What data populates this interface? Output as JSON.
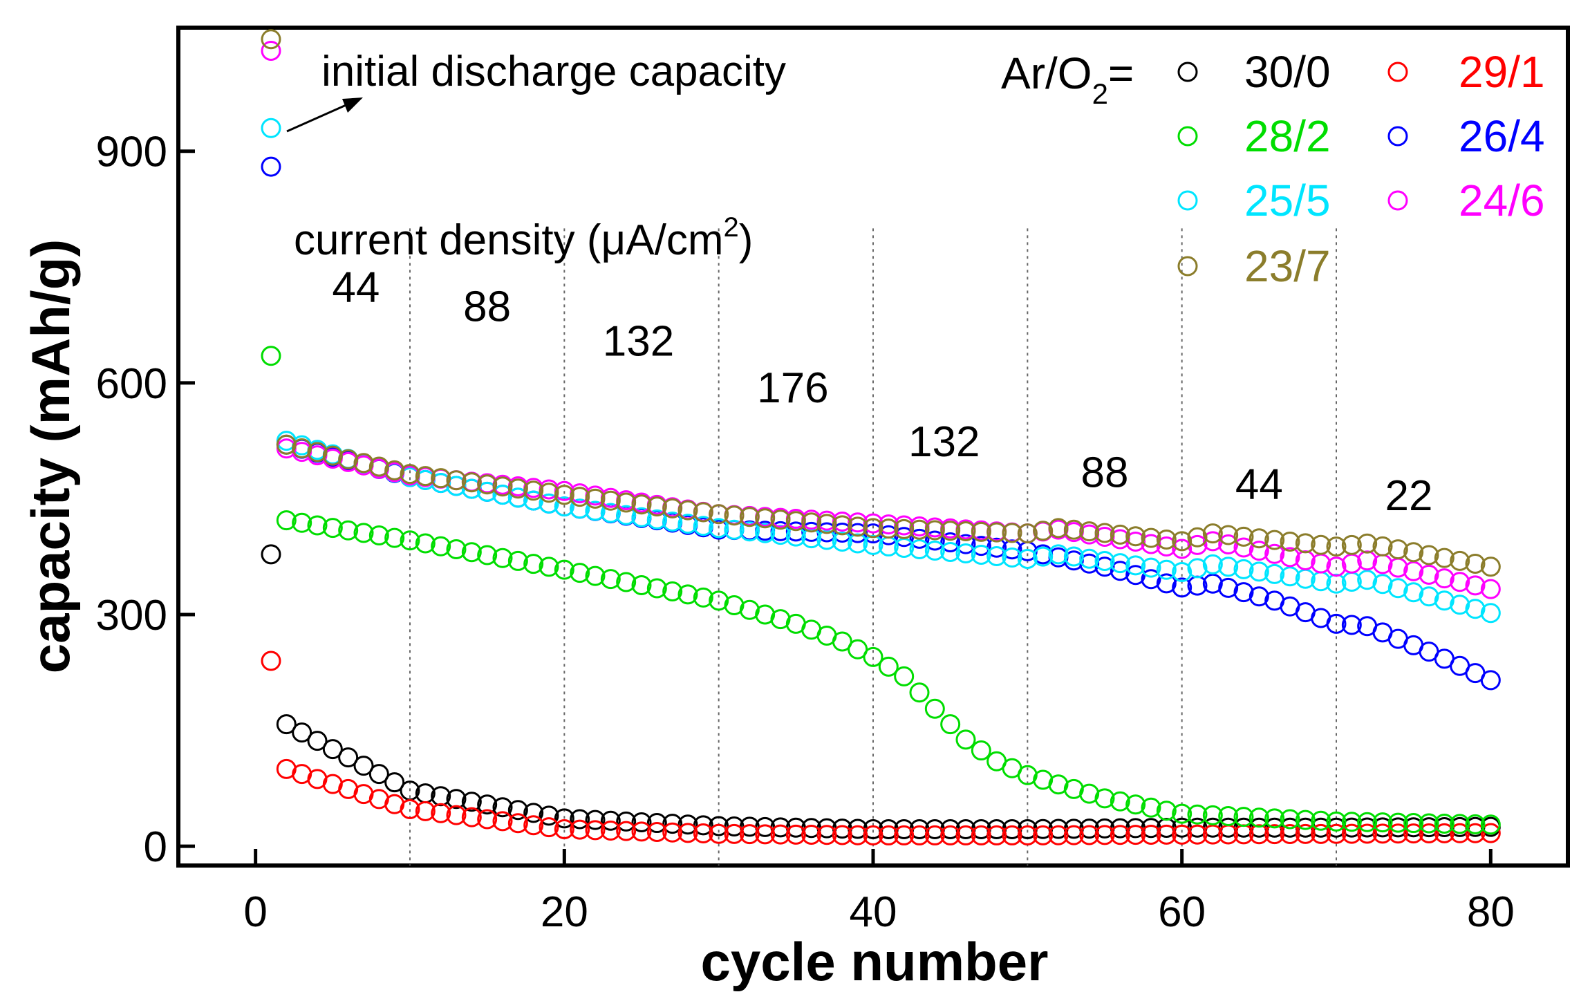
{
  "chart_data": {
    "type": "scatter",
    "xlabel": "cycle number",
    "ylabel": "capacity (mAh/g)",
    "xlim": [
      -5,
      85
    ],
    "ylim": [
      -25,
      1060
    ],
    "xticks": [
      0,
      20,
      40,
      60,
      80
    ],
    "yticks": [
      0,
      300,
      600,
      900
    ],
    "grid": false,
    "segment_dividers_x": [
      10,
      20,
      30,
      40,
      50,
      60,
      70
    ],
    "legend_prefix": "Ar/O",
    "legend_prefix_sub": "2",
    "legend_prefix_eq": "=",
    "legend_placement": "top-right",
    "annotations": {
      "initial": "initial discharge capacity",
      "current_density_pre": "current density (",
      "mu": "μ",
      "current_density_unit": "A/cm",
      "current_density_sup": "2",
      "current_density_close": ")",
      "segments": [
        {
          "label": "44",
          "x": 6.5,
          "y": 705
        },
        {
          "label": "88",
          "x": 15.0,
          "y": 680
        },
        {
          "label": "132",
          "x": 24.8,
          "y": 635
        },
        {
          "label": "176",
          "x": 34.8,
          "y": 575
        },
        {
          "label": "132",
          "x": 44.6,
          "y": 505
        },
        {
          "label": "88",
          "x": 55.0,
          "y": 465
        },
        {
          "label": "44",
          "x": 65.0,
          "y": 450
        },
        {
          "label": "22",
          "x": 74.7,
          "y": 435
        }
      ]
    },
    "series": [
      {
        "name": "30/0",
        "color": "#000000",
        "points": [
          [
            1,
            378
          ],
          [
            2,
            158
          ],
          [
            10,
            72
          ],
          [
            20,
            36
          ],
          [
            30,
            26
          ],
          [
            40,
            22
          ],
          [
            50,
            22
          ],
          [
            60,
            24
          ],
          [
            70,
            24
          ],
          [
            80,
            25
          ]
        ]
      },
      {
        "name": "29/1",
        "color": "#ff0000",
        "points": [
          [
            1,
            240
          ],
          [
            2,
            100
          ],
          [
            10,
            48
          ],
          [
            20,
            22
          ],
          [
            30,
            16
          ],
          [
            40,
            14
          ],
          [
            50,
            14
          ],
          [
            60,
            15
          ],
          [
            70,
            16
          ],
          [
            80,
            17
          ]
        ]
      },
      {
        "name": "28/2",
        "color": "#00dd00",
        "points": [
          [
            1,
            635
          ],
          [
            2,
            422
          ],
          [
            10,
            396
          ],
          [
            20,
            358
          ],
          [
            25,
            338
          ],
          [
            30,
            318
          ],
          [
            35,
            288
          ],
          [
            38,
            265
          ],
          [
            40,
            245
          ],
          [
            42,
            220
          ],
          [
            44,
            178
          ],
          [
            46,
            138
          ],
          [
            48,
            110
          ],
          [
            50,
            92
          ],
          [
            55,
            62
          ],
          [
            60,
            42
          ],
          [
            70,
            32
          ],
          [
            80,
            28
          ]
        ]
      },
      {
        "name": "26/4",
        "color": "#0000ff",
        "points": [
          [
            1,
            880
          ],
          [
            2,
            520
          ],
          [
            10,
            478
          ],
          [
            20,
            440
          ],
          [
            30,
            410
          ],
          [
            40,
            405
          ],
          [
            50,
            382
          ],
          [
            55,
            362
          ],
          [
            60,
            335
          ],
          [
            62,
            340
          ],
          [
            66,
            318
          ],
          [
            70,
            288
          ],
          [
            72,
            285
          ],
          [
            76,
            252
          ],
          [
            80,
            215
          ]
        ]
      },
      {
        "name": "25/5",
        "color": "#00e5ff",
        "points": [
          [
            1,
            930
          ],
          [
            2,
            525
          ],
          [
            10,
            478
          ],
          [
            20,
            440
          ],
          [
            30,
            412
          ],
          [
            40,
            390
          ],
          [
            50,
            372
          ],
          [
            52,
            378
          ],
          [
            60,
            355
          ],
          [
            62,
            365
          ],
          [
            70,
            340
          ],
          [
            72,
            345
          ],
          [
            80,
            302
          ]
        ]
      },
      {
        "name": "24/6",
        "color": "#ff00ff",
        "points": [
          [
            1,
            1030
          ],
          [
            2,
            515
          ],
          [
            10,
            480
          ],
          [
            20,
            460
          ],
          [
            30,
            430
          ],
          [
            40,
            418
          ],
          [
            50,
            405
          ],
          [
            52,
            410
          ],
          [
            60,
            385
          ],
          [
            62,
            395
          ],
          [
            70,
            362
          ],
          [
            72,
            370
          ],
          [
            80,
            333
          ]
        ]
      },
      {
        "name": "23/7",
        "color": "#8b7d2b",
        "points": [
          [
            1,
            1045
          ],
          [
            2,
            520
          ],
          [
            10,
            482
          ],
          [
            20,
            455
          ],
          [
            30,
            430
          ],
          [
            40,
            412
          ],
          [
            50,
            405
          ],
          [
            52,
            412
          ],
          [
            60,
            395
          ],
          [
            62,
            405
          ],
          [
            70,
            388
          ],
          [
            72,
            392
          ],
          [
            80,
            362
          ]
        ]
      }
    ]
  }
}
